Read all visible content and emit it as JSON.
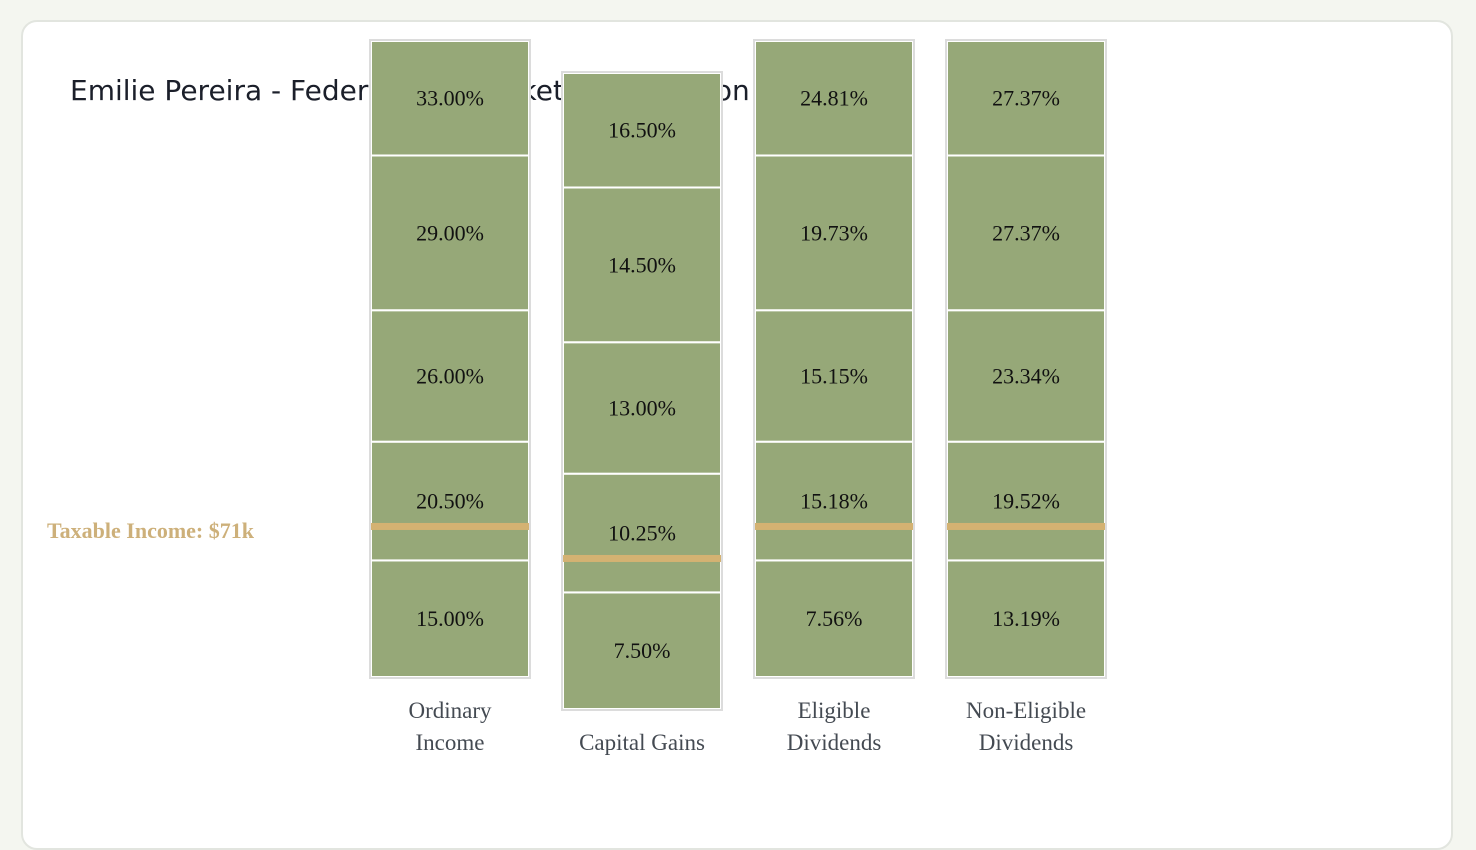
{
  "title": "Emilie Pereira - Federal Tax Bracket Visualization",
  "income_marker": {
    "label": "Taxable Income: $71k",
    "value_k": 71,
    "color": "#d4b272"
  },
  "colors": {
    "segment": "#96a878",
    "segment_border": "#ffffff",
    "label_text": "#111111",
    "category_text": "#444a52",
    "income_text": "#cdb07a"
  },
  "chart_data": {
    "type": "bar",
    "stacked": true,
    "categories": [
      {
        "name": "Ordinary Income",
        "lines": [
          "Ordinary",
          "Income"
        ]
      },
      {
        "name": "Capital Gains",
        "lines": [
          "Capital Gains"
        ]
      },
      {
        "name": "Eligible Dividends",
        "lines": [
          "Eligible",
          "Dividends"
        ]
      },
      {
        "name": "Non-Eligible Dividends",
        "lines": [
          "Non-Eligible",
          "Dividends"
        ]
      }
    ],
    "brackets": [
      {
        "rates": [
          "15.00%",
          "20.50%",
          "26.00%",
          "29.00%",
          "33.00%"
        ]
      },
      {
        "rates": [
          "7.50%",
          "10.25%",
          "13.00%",
          "14.50%",
          "16.50%"
        ]
      },
      {
        "rates": [
          "7.56%",
          "15.18%",
          "15.15%",
          "19.73%",
          "24.81%"
        ]
      },
      {
        "rates": [
          "13.19%",
          "19.52%",
          "23.34%",
          "27.37%",
          "27.37%"
        ]
      }
    ],
    "bracket_thresholds_k": [
      0,
      55,
      111,
      173,
      246,
      300
    ],
    "taxable_income_k": 71,
    "title": "Emilie Pereira - Federal Tax Bracket Visualization"
  }
}
